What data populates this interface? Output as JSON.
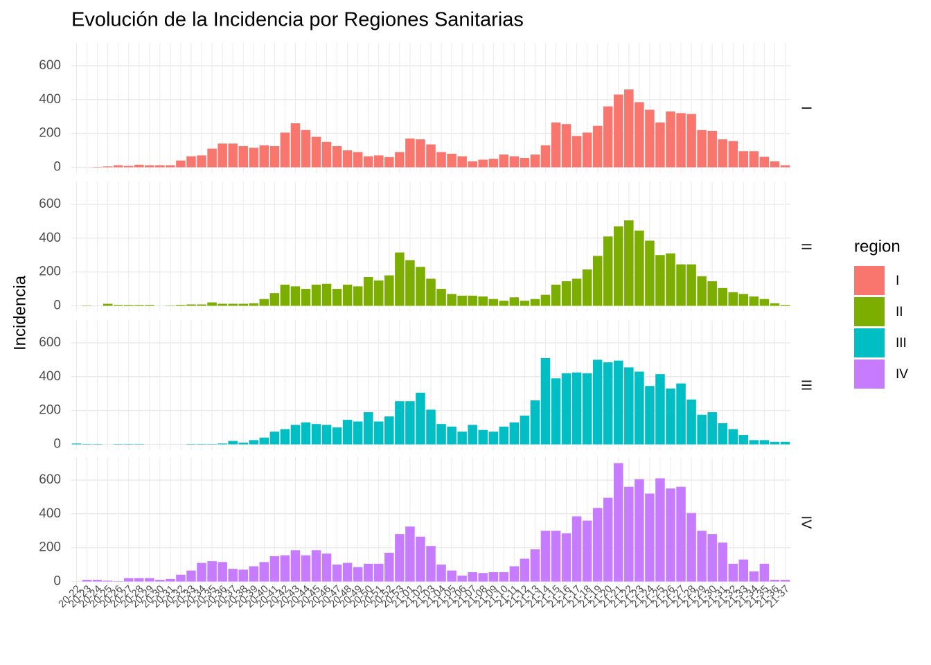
{
  "chart_data": {
    "type": "bar",
    "title": "Evolución de la Incidencia por Regiones Sanitarias",
    "y_label": "Incidencia",
    "legend_title": "region",
    "facets": true,
    "grid": true,
    "categories": [
      "20-22",
      "20-23",
      "20-24",
      "20-25",
      "20-26",
      "20-27",
      "20-28",
      "20-29",
      "20-30",
      "20-31",
      "20-32",
      "20-33",
      "20-34",
      "20-35",
      "20-36",
      "20-37",
      "20-38",
      "20-39",
      "20-40",
      "20-41",
      "20-42",
      "20-43",
      "20-44",
      "20-45",
      "20-46",
      "20-47",
      "20-48",
      "20-49",
      "20-50",
      "20-51",
      "20-52",
      "20-53",
      "21-01",
      "21-02",
      "21-03",
      "21-04",
      "21-05",
      "21-06",
      "21-07",
      "21-08",
      "21-09",
      "21-10",
      "21-11",
      "21-12",
      "21-13",
      "21-14",
      "21-15",
      "21-16",
      "21-17",
      "21-18",
      "21-19",
      "21-20",
      "21-21",
      "21-22",
      "21-23",
      "21-24",
      "21-25",
      "21-26",
      "21-27",
      "21-28",
      "21-29",
      "21-30",
      "21-31",
      "21-32",
      "21-33",
      "21-34",
      "21-35",
      "21-36",
      "21-37"
    ],
    "ylim": [
      -35,
      735
    ],
    "yticks": [
      0,
      200,
      400,
      600
    ],
    "series": [
      {
        "name": "I",
        "color": "#f8766d",
        "values": [
          0,
          0,
          2,
          5,
          12,
          8,
          15,
          12,
          12,
          12,
          40,
          65,
          70,
          110,
          140,
          140,
          125,
          115,
          130,
          125,
          205,
          260,
          220,
          180,
          150,
          125,
          100,
          90,
          65,
          70,
          60,
          90,
          170,
          165,
          135,
          90,
          80,
          65,
          35,
          45,
          50,
          75,
          65,
          55,
          75,
          130,
          265,
          255,
          185,
          205,
          245,
          360,
          430,
          460,
          385,
          340,
          265,
          330,
          320,
          315,
          220,
          215,
          165,
          155,
          95,
          95,
          62,
          35,
          12
        ]
      },
      {
        "name": "II",
        "color": "#7cae00",
        "values": [
          0,
          2,
          0,
          12,
          5,
          5,
          5,
          5,
          0,
          2,
          5,
          8,
          8,
          20,
          12,
          12,
          12,
          15,
          40,
          75,
          125,
          115,
          100,
          125,
          130,
          100,
          125,
          115,
          170,
          150,
          180,
          315,
          270,
          230,
          160,
          100,
          70,
          60,
          60,
          55,
          40,
          30,
          50,
          30,
          40,
          65,
          125,
          145,
          160,
          215,
          295,
          410,
          470,
          505,
          445,
          385,
          300,
          310,
          245,
          245,
          175,
          145,
          105,
          80,
          70,
          55,
          40,
          15,
          5
        ]
      },
      {
        "name": "III",
        "color": "#00bfc4",
        "values": [
          5,
          2,
          2,
          0,
          2,
          2,
          2,
          0,
          0,
          0,
          0,
          2,
          2,
          2,
          5,
          20,
          10,
          25,
          40,
          75,
          90,
          115,
          130,
          120,
          115,
          100,
          145,
          135,
          190,
          135,
          165,
          255,
          255,
          305,
          205,
          120,
          105,
          75,
          115,
          85,
          75,
          105,
          130,
          170,
          260,
          510,
          390,
          420,
          425,
          420,
          500,
          485,
          495,
          455,
          430,
          345,
          415,
          330,
          360,
          265,
          175,
          190,
          125,
          90,
          55,
          25,
          25,
          15,
          15
        ]
      },
      {
        "name": "IV",
        "color": "#c77cff",
        "values": [
          0,
          10,
          10,
          5,
          2,
          20,
          20,
          20,
          10,
          15,
          40,
          65,
          110,
          120,
          115,
          75,
          70,
          90,
          115,
          150,
          155,
          185,
          155,
          185,
          165,
          100,
          110,
          85,
          105,
          105,
          170,
          280,
          325,
          265,
          210,
          100,
          65,
          35,
          55,
          50,
          55,
          55,
          90,
          135,
          190,
          300,
          300,
          285,
          385,
          360,
          435,
          495,
          700,
          560,
          605,
          520,
          610,
          550,
          560,
          405,
          300,
          280,
          230,
          105,
          130,
          60,
          105,
          10,
          10
        ]
      }
    ]
  }
}
